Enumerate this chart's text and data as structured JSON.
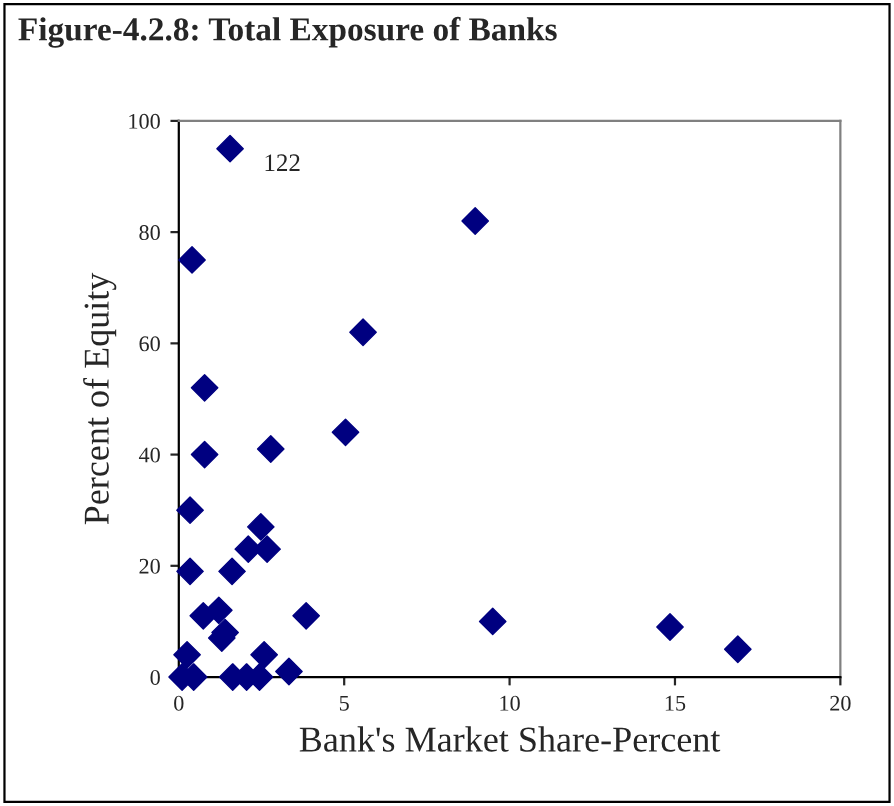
{
  "chart_data": {
    "type": "scatter",
    "title": "Figure-4.2.8: Total Exposure of Banks",
    "xlabel": "Bank's Market Share-Percent",
    "ylabel": "Percent of Equity",
    "x": [
      1.55,
      0.4,
      0.78,
      0.78,
      0.34,
      0.34,
      0.25,
      0.1,
      0.45,
      0.74,
      1.21,
      1.3,
      1.4,
      1.61,
      1.63,
      2.05,
      2.44,
      2.58,
      2.1,
      2.48,
      2.67,
      2.78,
      3.33,
      3.85,
      5.04,
      5.57,
      8.96,
      9.49,
      14.85,
      16.9
    ],
    "series": [
      {
        "color": "#000080",
        "values": [
          95,
          75,
          52,
          40,
          30,
          19,
          4,
          0,
          0,
          11,
          12,
          7,
          8,
          19,
          0,
          0,
          0,
          4,
          23,
          27,
          23,
          41,
          1,
          11,
          44,
          62,
          82,
          10,
          9,
          5
        ]
      }
    ],
    "annotations": [
      {
        "text": "122",
        "x": 1.55,
        "y": 95
      }
    ],
    "marker": "diamond",
    "grid": false,
    "legend": false,
    "xlim": [
      0,
      20
    ],
    "xticks": [
      0,
      5,
      10,
      15,
      20
    ],
    "ylim": [
      0,
      100
    ],
    "yticks": [
      0,
      20,
      40,
      60,
      80,
      100
    ]
  }
}
